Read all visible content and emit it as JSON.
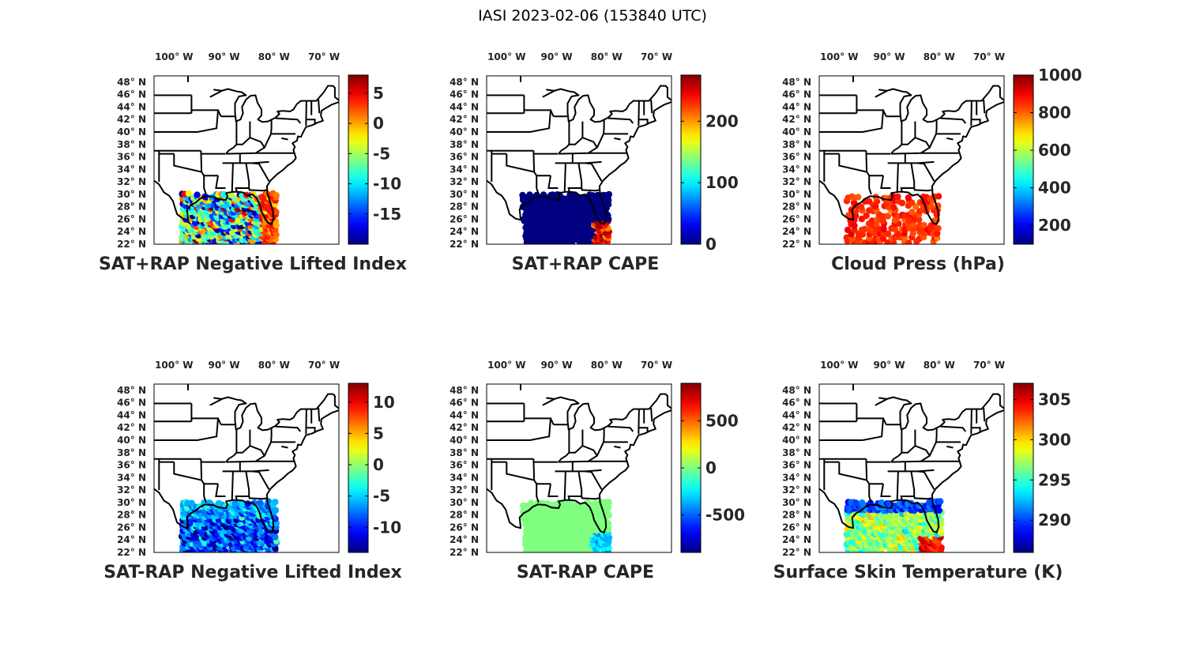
{
  "figure_title": "IASI 2023-02-06 (153840 UTC)",
  "lon_ticks": [
    "100",
    "90",
    "80",
    "70"
  ],
  "lon_tick_values": [
    -100,
    -90,
    -80,
    -70
  ],
  "lon_hemisphere": "W",
  "lat_ticks": [
    "48",
    "46",
    "44",
    "42",
    "40",
    "38",
    "36",
    "34",
    "32",
    "30",
    "28",
    "26",
    "24",
    "22"
  ],
  "lat_tick_values": [
    48,
    46,
    44,
    42,
    40,
    38,
    36,
    34,
    32,
    30,
    28,
    26,
    24,
    22
  ],
  "lat_hemisphere": "N",
  "degree_symbol": "°",
  "map_extent": {
    "lon": [
      -104,
      -67
    ],
    "lat": [
      22,
      49
    ]
  },
  "colormap": "jet",
  "chart_data": [
    {
      "type": "scatter",
      "id": "p1",
      "title": "SAT+RAP Negative Lifted Index",
      "colorbar": {
        "range": [
          -20,
          8
        ],
        "ticks": [
          "5",
          "0",
          "-5",
          "-10",
          "-15"
        ],
        "tick_values": [
          5,
          0,
          -5,
          -10,
          -15
        ]
      },
      "value_distribution": {
        "dominant": -8,
        "spread": 10
      }
    },
    {
      "type": "scatter",
      "id": "p2",
      "title": "SAT+RAP CAPE",
      "colorbar": {
        "range": [
          0,
          275
        ],
        "ticks": [
          "200",
          "100",
          "0"
        ],
        "tick_values": [
          200,
          100,
          0
        ]
      },
      "value_distribution": {
        "dominant": 0,
        "spread": 0,
        "note_values": [
          200,
          260
        ]
      }
    },
    {
      "type": "scatter",
      "id": "p3",
      "title": "Cloud Press (hPa)",
      "colorbar": {
        "range": [
          100,
          1000
        ],
        "ticks": [
          "1000",
          "800",
          "600",
          "400",
          "200"
        ],
        "tick_values": [
          1000,
          800,
          600,
          400,
          200
        ]
      },
      "value_distribution": {
        "dominant": 850,
        "spread": 40
      }
    },
    {
      "type": "scatter",
      "id": "p4",
      "title": "SAT-RAP Negative Lifted Index",
      "colorbar": {
        "range": [
          -14,
          13
        ],
        "ticks": [
          "10",
          "5",
          "0",
          "-5",
          "-10"
        ],
        "tick_values": [
          10,
          5,
          0,
          -5,
          -10
        ]
      },
      "value_distribution": {
        "dominant": -9,
        "spread": 5
      }
    },
    {
      "type": "scatter",
      "id": "p5",
      "title": "SAT-RAP CAPE",
      "colorbar": {
        "range": [
          -900,
          900
        ],
        "ticks": [
          "500",
          "0",
          "-500"
        ],
        "tick_values": [
          500,
          0,
          -500
        ]
      },
      "value_distribution": {
        "dominant": 0,
        "spread": 0,
        "note_values": [
          -300
        ]
      }
    },
    {
      "type": "scatter",
      "id": "p6",
      "title": "Surface Skin Temperature (K)",
      "colorbar": {
        "range": [
          286,
          307
        ],
        "ticks": [
          "305",
          "300",
          "295",
          "290"
        ],
        "tick_values": [
          305,
          300,
          295,
          290
        ]
      },
      "value_distribution": {
        "dominant": 297,
        "spread": 2.5
      }
    }
  ]
}
